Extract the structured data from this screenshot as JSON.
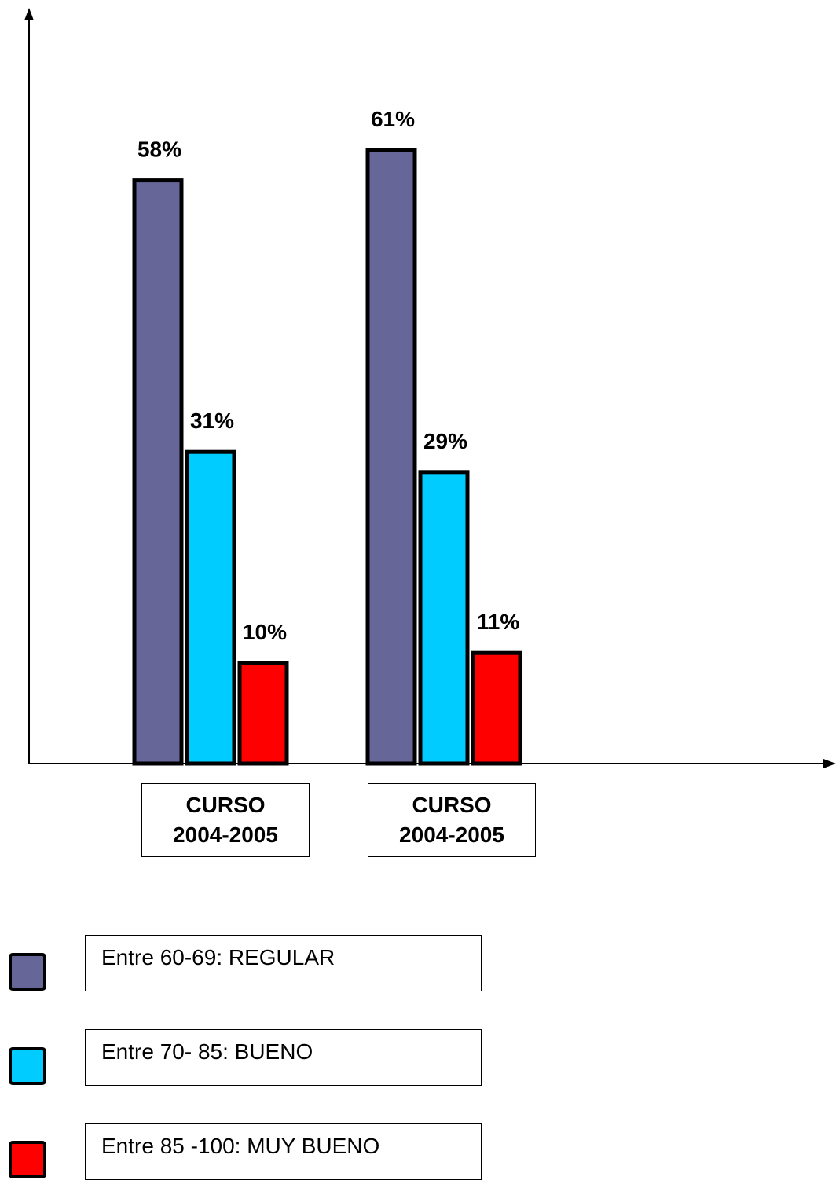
{
  "chart_data": {
    "type": "bar",
    "categories": [
      "CURSO 2004-2005",
      "CURSO 2004-2005"
    ],
    "category_lines": [
      [
        "CURSO",
        "2004-2005"
      ],
      [
        "CURSO",
        "2004-2005"
      ]
    ],
    "series": [
      {
        "name": "Entre 60-69: REGULAR",
        "color": "#666699",
        "values": [
          58,
          61
        ],
        "labels": [
          "58%",
          "61%"
        ]
      },
      {
        "name": "Entre 70- 85: BUENO",
        "color": "#00ccff",
        "values": [
          31,
          29
        ],
        "labels": [
          "31%",
          "29%"
        ]
      },
      {
        "name": "Entre 85 -100: MUY BUENO",
        "color": "#ff0000",
        "values": [
          10,
          11
        ],
        "labels": [
          "10%",
          "11%"
        ]
      }
    ],
    "unit": "%",
    "ylim": [
      0,
      75
    ],
    "grid": false,
    "legend_position": "bottom-left"
  }
}
